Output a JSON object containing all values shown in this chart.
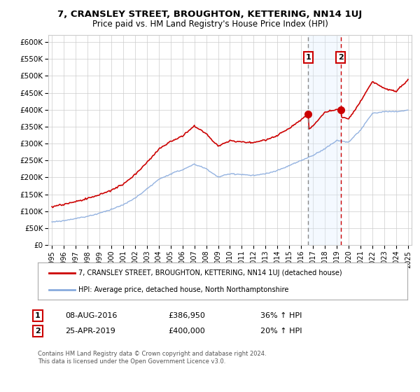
{
  "title": "7, CRANSLEY STREET, BROUGHTON, KETTERING, NN14 1UJ",
  "subtitle": "Price paid vs. HM Land Registry's House Price Index (HPI)",
  "legend_line1": "7, CRANSLEY STREET, BROUGHTON, KETTERING, NN14 1UJ (detached house)",
  "legend_line2": "HPI: Average price, detached house, North Northamptonshire",
  "annotation1_date": "08-AUG-2016",
  "annotation1_price": "£386,950",
  "annotation1_hpi": "36% ↑ HPI",
  "annotation2_date": "25-APR-2019",
  "annotation2_price": "£400,000",
  "annotation2_hpi": "20% ↑ HPI",
  "footer": "Contains HM Land Registry data © Crown copyright and database right 2024.\nThis data is licensed under the Open Government Licence v3.0.",
  "red_color": "#cc0000",
  "blue_color": "#88aadd",
  "shade_color": "#ddeeff",
  "vline1_color": "#888888",
  "vline2_color": "#cc0000",
  "marker_box_color": "#cc0000",
  "ylim_min": 0,
  "ylim_max": 620000,
  "sale1_year": 2016.6,
  "sale2_year": 2019.33,
  "sale1_price": 386950,
  "sale2_price": 400000,
  "background_color": "#ffffff",
  "grid_color": "#cccccc"
}
